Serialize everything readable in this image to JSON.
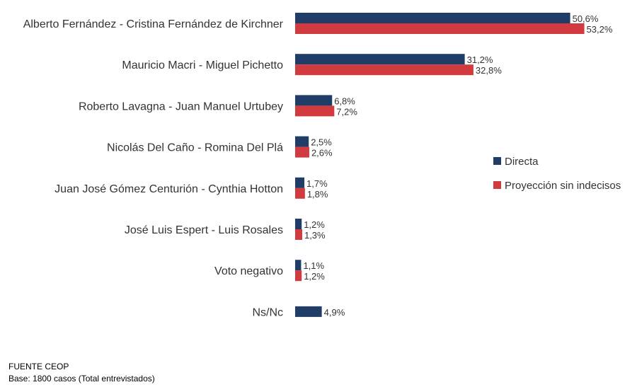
{
  "chart_data": {
    "type": "bar",
    "orientation": "horizontal",
    "title": "",
    "xlabel": "",
    "ylabel": "",
    "xlim": [
      0,
      55
    ],
    "grid": false,
    "legend_position": "right",
    "categories": [
      "Alberto Fernández - Cristina Fernández de Kirchner",
      "Mauricio Macri - Miguel Pichetto",
      "Roberto Lavagna - Juan Manuel Urtubey",
      "Nicolás Del Caño - Romina Del Plá",
      "Juan José Gómez Centurión - Cynthia Hotton",
      "José Luis Espert - Luis Rosales",
      "Voto negativo",
      "Ns/Nc"
    ],
    "series": [
      {
        "name": "Directa",
        "color": "#1f3d66",
        "values": [
          50.6,
          31.2,
          6.8,
          2.5,
          1.7,
          1.2,
          1.1,
          4.9
        ],
        "labels": [
          "50,6%",
          "31,2%",
          "6,8%",
          "2,5%",
          "1,7%",
          "1,2%",
          "1,1%",
          "4,9%"
        ]
      },
      {
        "name": "Proyección sin indecisos",
        "color": "#d13a3f",
        "values": [
          53.2,
          32.8,
          7.2,
          2.6,
          1.8,
          1.3,
          1.2,
          null
        ],
        "labels": [
          "53,2%",
          "32,8%",
          "7,2%",
          "2,6%",
          "1,8%",
          "1,3%",
          "1,2%",
          null
        ]
      }
    ]
  },
  "footer": {
    "source": "FUENTE CEOP",
    "base": "Base: 1800 casos (Total entrevistados)"
  }
}
